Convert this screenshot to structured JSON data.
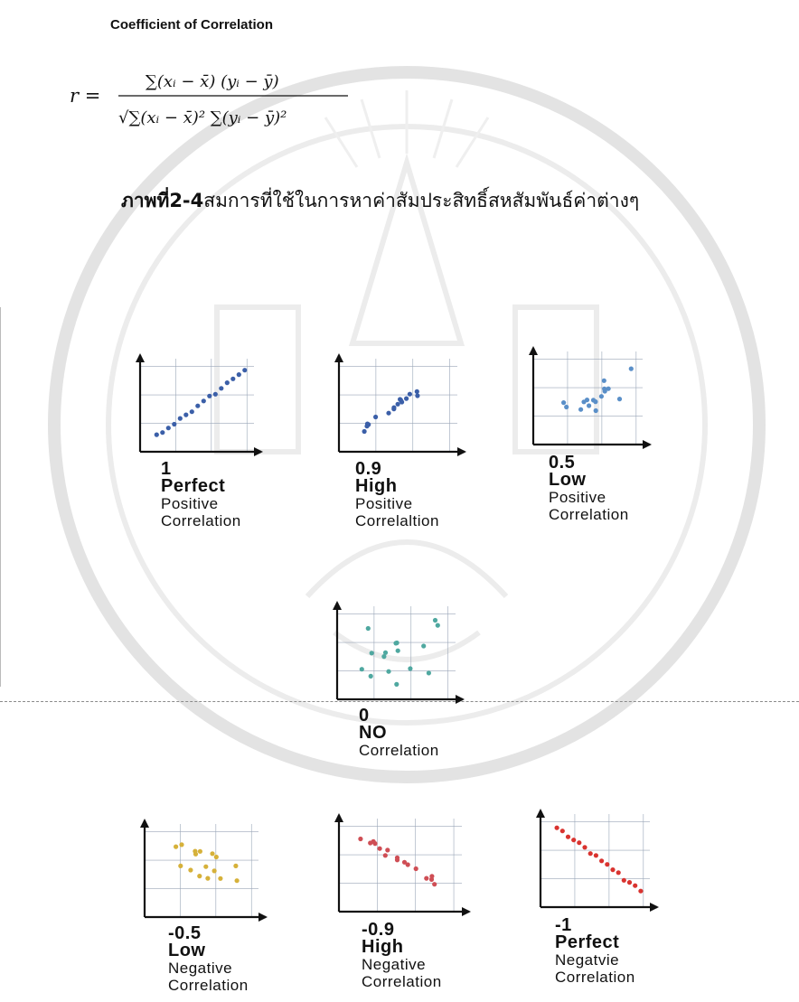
{
  "heading": "Coefficient of Correlation",
  "formula": {
    "lhs": "r =",
    "numerator": "∑(xᵢ − x̄) (yᵢ − ȳ)",
    "denominator": "√∑(xᵢ − x̄)² ∑(yᵢ − ȳ)²"
  },
  "caption": {
    "figure": "ภาพที่2-4",
    "text": "สมการที่ใช้ในการหาค่าสัมประสิทธิ์สหสัมพันธ์ค่าต่างๆ"
  },
  "plots": [
    {
      "value": "1",
      "strength": "Perfect",
      "direction": "Positive",
      "word": "Correlation",
      "color": "#3b5fa8",
      "r": 1.0
    },
    {
      "value": "0.9",
      "strength": "High",
      "direction": "Positive",
      "word": "Correlaltion",
      "color": "#3b5fa8",
      "r": 0.9
    },
    {
      "value": "0.5",
      "strength": "Low",
      "direction": "Positive",
      "word": "Correlation",
      "color": "#5a8fc8",
      "r": 0.5
    },
    {
      "value": "0",
      "strength": "NO",
      "direction": "",
      "word": "Correlation",
      "color": "#4fa8a0",
      "r": 0.0
    },
    {
      "value": "-0.5",
      "strength": "Low",
      "direction": "Negative",
      "word": "Correlation",
      "color": "#d6b13a",
      "r": -0.5
    },
    {
      "value": "-0.9",
      "strength": "High",
      "direction": "Negative",
      "word": "Correlation",
      "color": "#cf4e55",
      "r": -0.9
    },
    {
      "value": "-1",
      "strength": "Perfect",
      "direction": "Negatvie",
      "word": "Correlation",
      "color": "#d9332f",
      "r": -1.0
    }
  ]
}
